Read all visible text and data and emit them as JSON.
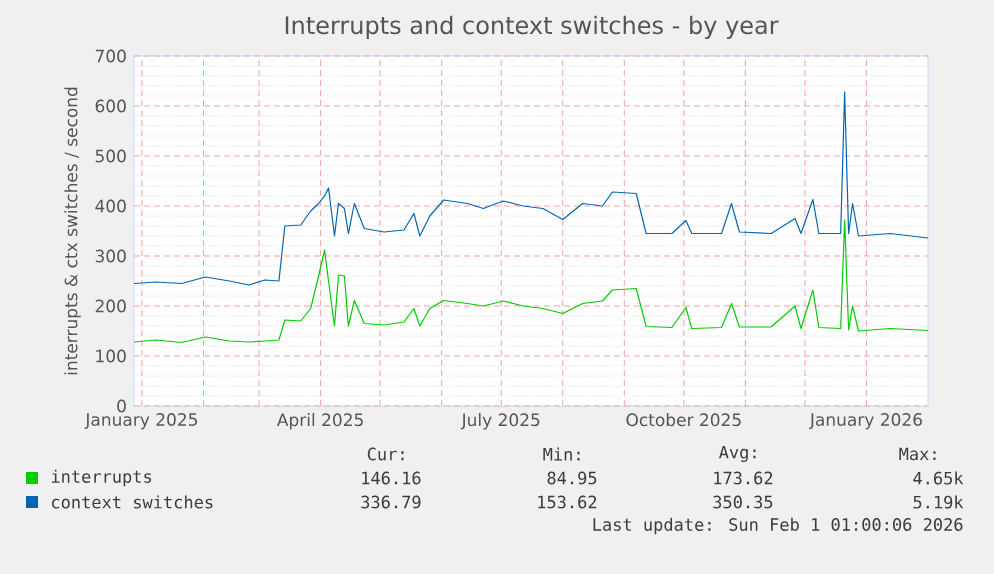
{
  "chart_data": {
    "type": "line",
    "title": "Interrupts and context switches - by year",
    "ylabel": "interrupts & ctx switches / second",
    "x": [
      "2024-12-28",
      "2025-01-08",
      "2025-01-21",
      "2025-02-02",
      "2025-02-14",
      "2025-02-24",
      "2025-03-04",
      "2025-03-11",
      "2025-03-14",
      "2025-03-22",
      "2025-03-27",
      "2025-03-31",
      "2025-04-03",
      "2025-04-05",
      "2025-04-08",
      "2025-04-10",
      "2025-04-13",
      "2025-04-15",
      "2025-04-18",
      "2025-04-23",
      "2025-05-03",
      "2025-05-13",
      "2025-05-18",
      "2025-05-21",
      "2025-05-26",
      "2025-06-02",
      "2025-06-14",
      "2025-06-22",
      "2025-07-02",
      "2025-07-12",
      "2025-07-22",
      "2025-08-01",
      "2025-08-11",
      "2025-08-21",
      "2025-08-26",
      "2025-09-07",
      "2025-09-12",
      "2025-09-25",
      "2025-10-02",
      "2025-10-05",
      "2025-10-20",
      "2025-10-25",
      "2025-10-29",
      "2025-11-14",
      "2025-11-26",
      "2025-11-29",
      "2025-12-05",
      "2025-12-08",
      "2025-12-19",
      "2025-12-21",
      "2025-12-23",
      "2025-12-25",
      "2025-12-28",
      "2026-01-13",
      "2026-02-01"
    ],
    "series": [
      {
        "name": "interrupts",
        "color": "#00cc00",
        "values": [
          128,
          132,
          127,
          138,
          130,
          128,
          130,
          132,
          172,
          170,
          195,
          260,
          312,
          250,
          160,
          262,
          260,
          160,
          211,
          165,
          162,
          168,
          195,
          160,
          195,
          211,
          205,
          200,
          210,
          200,
          195,
          185,
          205,
          210,
          232,
          235,
          159,
          157,
          197,
          155,
          157,
          205,
          158,
          158,
          200,
          155,
          232,
          157,
          155,
          372,
          152,
          200,
          150,
          155,
          151
        ]
      },
      {
        "name": "context switches",
        "color": "#0066b3",
        "values": [
          245,
          248,
          245,
          258,
          250,
          242,
          252,
          250,
          360,
          362,
          390,
          405,
          420,
          436,
          340,
          405,
          395,
          345,
          405,
          355,
          348,
          352,
          385,
          340,
          380,
          412,
          405,
          395,
          410,
          400,
          395,
          373,
          405,
          400,
          428,
          425,
          345,
          345,
          371,
          345,
          345,
          405,
          348,
          345,
          375,
          345,
          413,
          345,
          345,
          628,
          345,
          405,
          340,
          345,
          336
        ]
      }
    ],
    "xlim": [
      "2024-12-28",
      "2026-02-01"
    ],
    "xticks": [
      {
        "value": "2025-01-01",
        "label": "January 2025"
      },
      {
        "value": "2025-02-01",
        "label": null
      },
      {
        "value": "2025-03-01",
        "label": null
      },
      {
        "value": "2025-04-01",
        "label": "April 2025"
      },
      {
        "value": "2025-05-01",
        "label": null
      },
      {
        "value": "2025-06-01",
        "label": null
      },
      {
        "value": "2025-07-01",
        "label": "July 2025"
      },
      {
        "value": "2025-08-01",
        "label": null
      },
      {
        "value": "2025-09-01",
        "label": null
      },
      {
        "value": "2025-10-01",
        "label": "October 2025"
      },
      {
        "value": "2025-11-01",
        "label": null
      },
      {
        "value": "2025-12-01",
        "label": null
      },
      {
        "value": "2026-01-01",
        "label": "January 2026"
      }
    ],
    "ylim": [
      0,
      700
    ],
    "yticks": [
      0,
      100,
      200,
      300,
      400,
      500,
      600,
      700
    ],
    "grid": true,
    "legend": "bottom",
    "annotations": [
      "Cur:",
      "Min:",
      "Avg:",
      "Max:",
      "146.16",
      "84.95",
      "173.62",
      "4.65k",
      "336.79",
      "153.62",
      "350.35",
      "5.19k",
      "Last update: Sun Feb  1 01:00:06 2026"
    ]
  }
}
